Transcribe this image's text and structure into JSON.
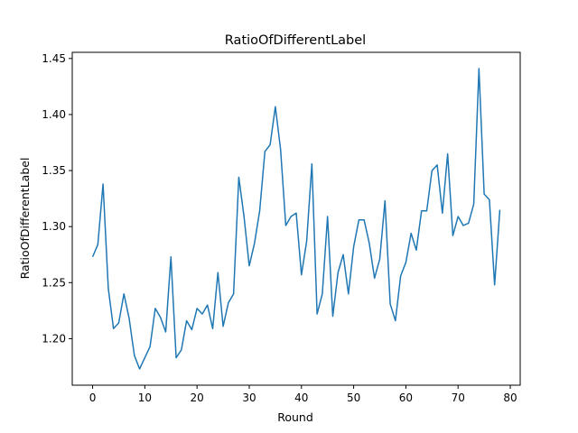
{
  "chart_data": {
    "type": "line",
    "title": "RatioOfDifferentLabel",
    "xlabel": "Round",
    "ylabel": "RatioOfDifferentLabel",
    "xlim": [
      -3.9,
      81.9
    ],
    "ylim": [
      1.1585,
      1.4555
    ],
    "xticks": [
      0,
      10,
      20,
      30,
      40,
      50,
      60,
      70,
      80
    ],
    "xtick_labels": [
      "0",
      "10",
      "20",
      "30",
      "40",
      "50",
      "60",
      "70",
      "80"
    ],
    "yticks": [
      1.2,
      1.25,
      1.3,
      1.35,
      1.4,
      1.45
    ],
    "ytick_labels": [
      "1.20",
      "1.25",
      "1.30",
      "1.35",
      "1.40",
      "1.45"
    ],
    "grid": false,
    "legend": "none",
    "colors": {
      "line": "#1f77b4",
      "axes": "#000000",
      "background": "#ffffff"
    },
    "series": [
      {
        "x": [
          0,
          1,
          2,
          3,
          4,
          5,
          6,
          7,
          8,
          9,
          10,
          11,
          12,
          13,
          14,
          15,
          16,
          17,
          18,
          19,
          20,
          21,
          22,
          23,
          24,
          25,
          26,
          27,
          28,
          29,
          30,
          31,
          32,
          33,
          34,
          35,
          36,
          37,
          38,
          39,
          40,
          41,
          42,
          43,
          44,
          45,
          46,
          47,
          48,
          49,
          50,
          51,
          52,
          53,
          54,
          55,
          56,
          57,
          58,
          59,
          60,
          61,
          62,
          63,
          64,
          65,
          66,
          67,
          68,
          69,
          70,
          71,
          72,
          73,
          74,
          75,
          76,
          77,
          78
        ],
        "values": [
          1.273,
          1.284,
          1.338,
          1.245,
          1.209,
          1.214,
          1.24,
          1.218,
          1.185,
          1.173,
          1.183,
          1.193,
          1.227,
          1.219,
          1.206,
          1.273,
          1.183,
          1.19,
          1.216,
          1.208,
          1.227,
          1.222,
          1.23,
          1.209,
          1.259,
          1.211,
          1.232,
          1.24,
          1.344,
          1.309,
          1.265,
          1.285,
          1.314,
          1.367,
          1.373,
          1.407,
          1.369,
          1.301,
          1.309,
          1.312,
          1.257,
          1.287,
          1.356,
          1.222,
          1.24,
          1.309,
          1.22,
          1.259,
          1.275,
          1.24,
          1.282,
          1.306,
          1.306,
          1.285,
          1.254,
          1.271,
          1.323,
          1.231,
          1.216,
          1.256,
          1.268,
          1.294,
          1.279,
          1.314,
          1.314,
          1.35,
          1.355,
          1.312,
          1.365,
          1.292,
          1.309,
          1.301,
          1.303,
          1.32,
          1.441,
          1.329,
          1.324,
          1.248,
          1.315
        ]
      }
    ]
  }
}
